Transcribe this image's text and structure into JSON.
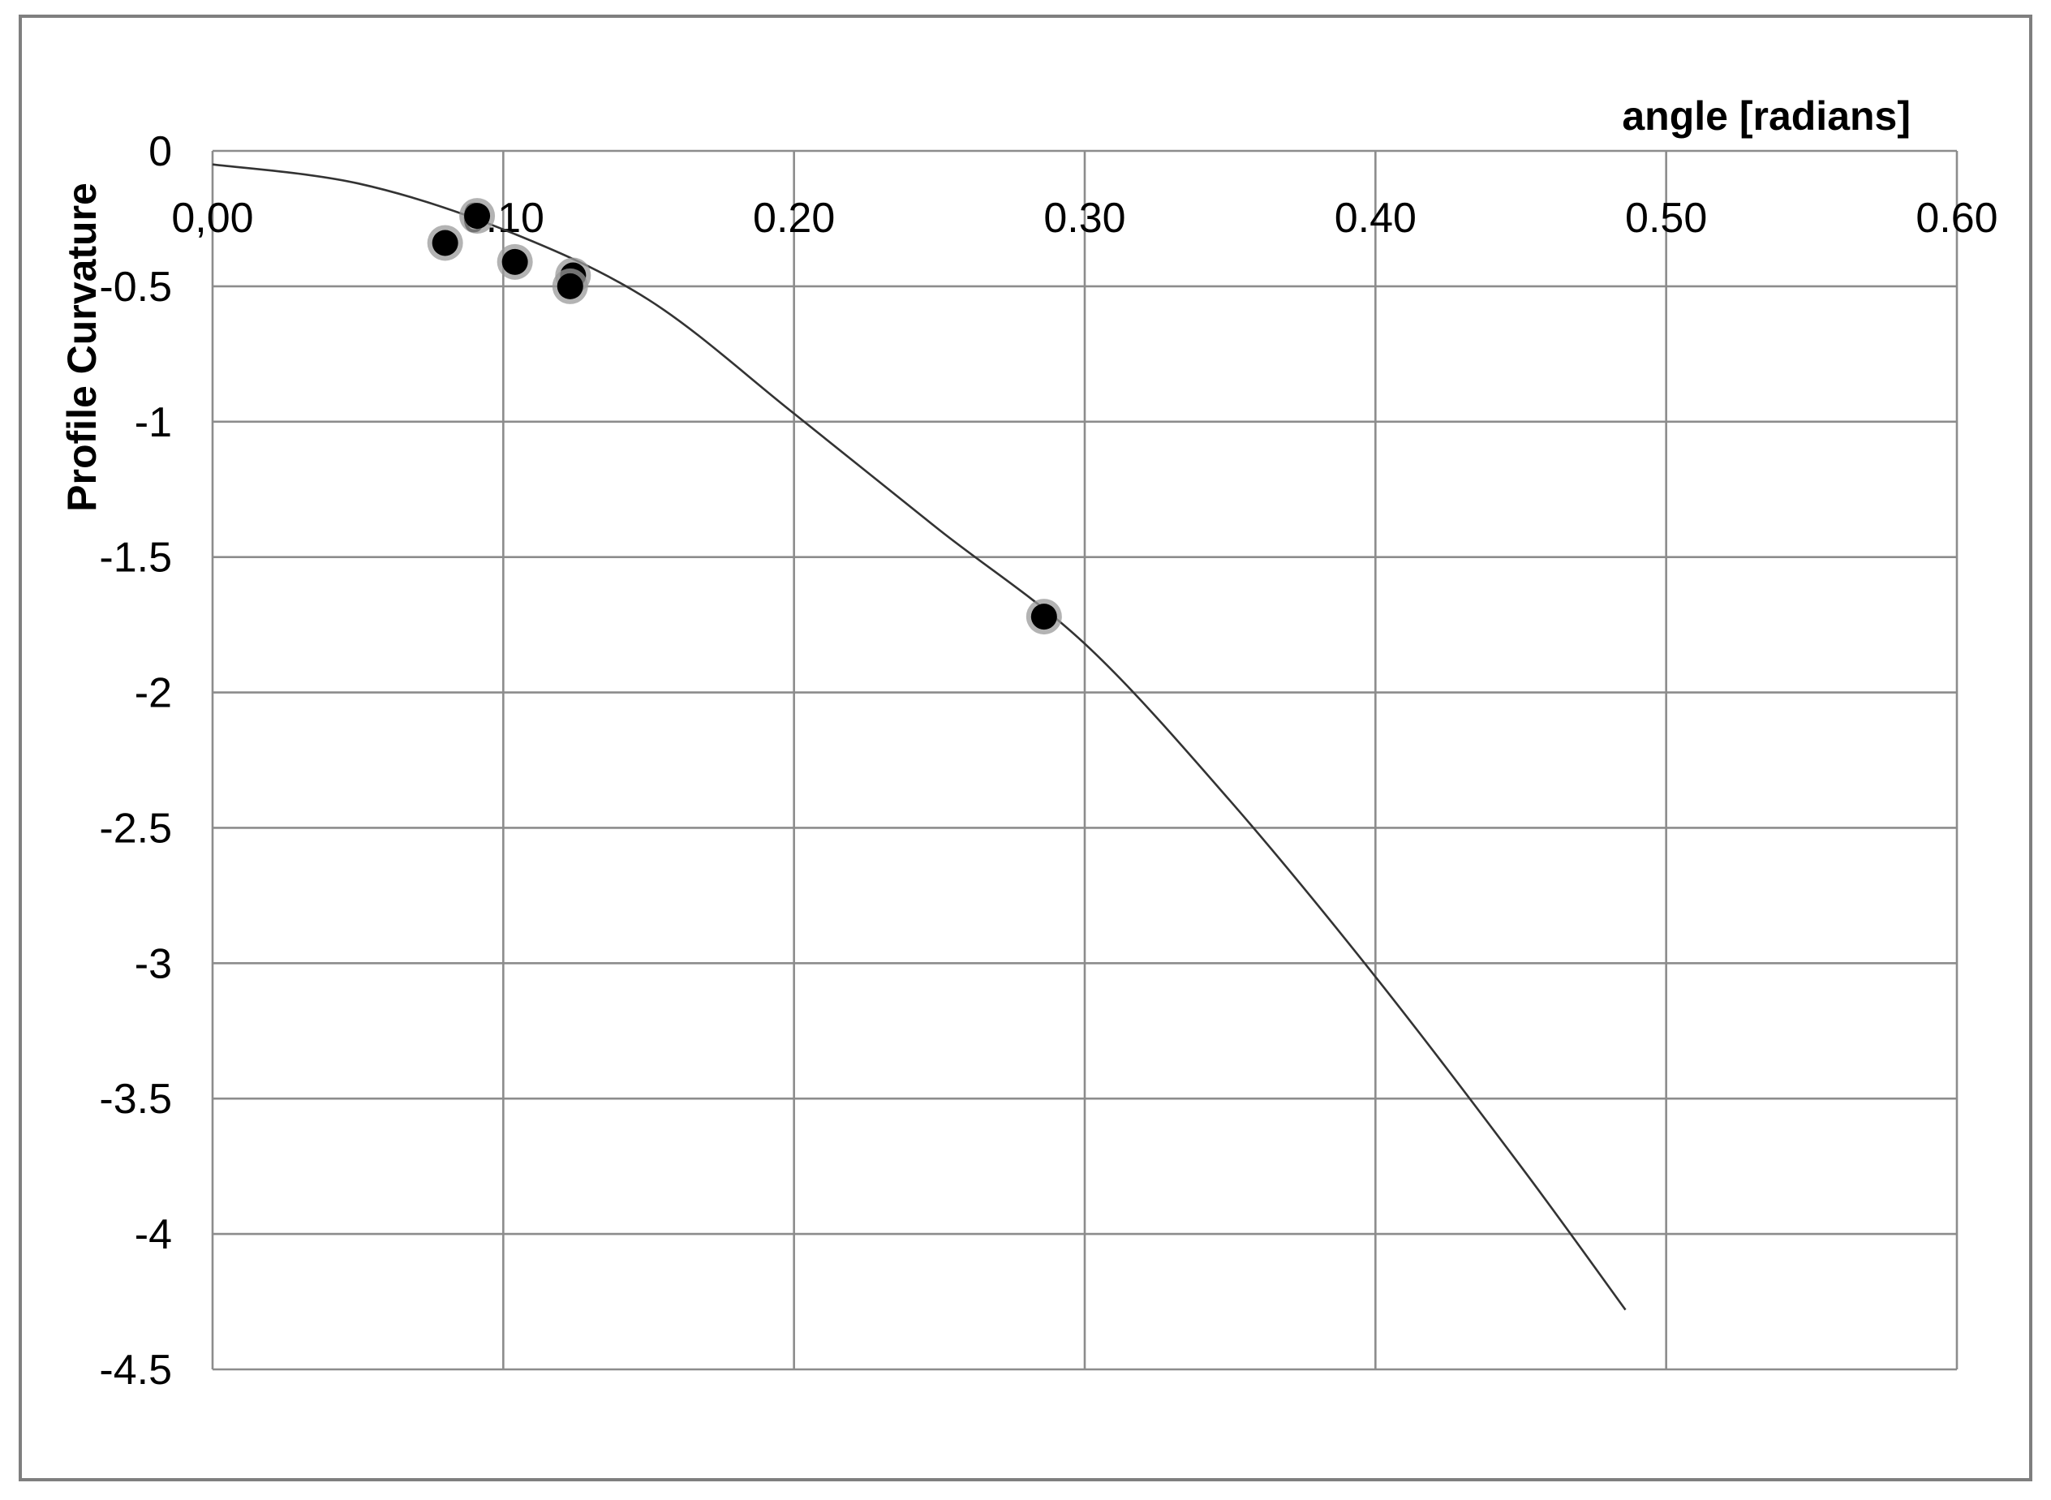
{
  "chart_data": {
    "type": "scatter",
    "title": "",
    "xlabel": "angle [radians]",
    "ylabel": "Profile Curvature",
    "xlim": [
      0,
      0.6
    ],
    "ylim": [
      -4.5,
      0
    ],
    "x_ticks": [
      "0,00",
      "0.10",
      "0.20",
      "0.30",
      "0.40",
      "0.50",
      "0.60"
    ],
    "y_ticks": [
      "0",
      "-0.5",
      "-1",
      "-1.5",
      "-2",
      "-2.5",
      "-3",
      "-3.5",
      "-4",
      "-4.5"
    ],
    "x_axis_position": "top",
    "grid": true,
    "legend": "none",
    "colors": {
      "points": "#000000",
      "trendline": "#333333",
      "grid": "#8c8c8c",
      "frame": "#7f7f7f"
    },
    "series": [
      {
        "type": "scatter",
        "points": [
          {
            "x": 0.08,
            "y": -0.34
          },
          {
            "x": 0.091,
            "y": -0.24
          },
          {
            "x": 0.104,
            "y": -0.41
          },
          {
            "x": 0.124,
            "y": -0.46
          },
          {
            "x": 0.123,
            "y": -0.5
          },
          {
            "x": 0.286,
            "y": -1.72
          }
        ]
      },
      {
        "type": "line",
        "trendline": "polynomial",
        "points": [
          {
            "x": 0.0,
            "y": -0.05
          },
          {
            "x": 0.05,
            "y": -0.12
          },
          {
            "x": 0.1,
            "y": -0.29
          },
          {
            "x": 0.15,
            "y": -0.55
          },
          {
            "x": 0.2,
            "y": -0.97
          },
          {
            "x": 0.25,
            "y": -1.4
          },
          {
            "x": 0.3,
            "y": -1.82
          },
          {
            "x": 0.35,
            "y": -2.4
          },
          {
            "x": 0.4,
            "y": -3.05
          },
          {
            "x": 0.45,
            "y": -3.75
          },
          {
            "x": 0.486,
            "y": -4.28
          }
        ]
      }
    ]
  }
}
